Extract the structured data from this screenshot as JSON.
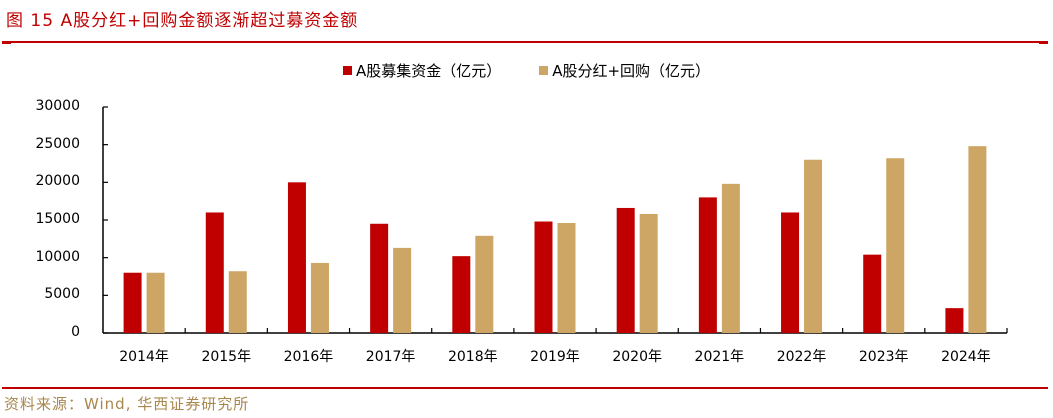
{
  "header": {
    "title": "图 15 A股分红+回购金额逐渐超过募资金额"
  },
  "footer": {
    "source": "资料来源：Wind, 华西证券研究所"
  },
  "colors": {
    "accent": "#c00000",
    "series_1": "#c00000",
    "series_2": "#cda564",
    "source_text": "#a8874e"
  },
  "legend": [
    {
      "label": "A股募集资金（亿元）",
      "color": "#c00000"
    },
    {
      "label": "A股分红+回购（亿元）",
      "color": "#cda564"
    }
  ],
  "y_axis": {
    "ticks": [
      "0",
      "5000",
      "10000",
      "15000",
      "20000",
      "25000",
      "30000"
    ]
  },
  "chart_data": {
    "type": "bar",
    "title": "图 15 A股分红+回购金额逐渐超过募资金额",
    "xlabel": "",
    "ylabel": "",
    "ylim": [
      0,
      30000
    ],
    "yticks": [
      0,
      5000,
      10000,
      15000,
      20000,
      25000,
      30000
    ],
    "grid": false,
    "legend_position": "top",
    "categories": [
      "2014年",
      "2015年",
      "2016年",
      "2017年",
      "2018年",
      "2019年",
      "2020年",
      "2021年",
      "2022年",
      "2023年",
      "2024年"
    ],
    "series": [
      {
        "name": "A股募集资金（亿元）",
        "color": "#c00000",
        "values": [
          8000,
          16000,
          20000,
          14500,
          10200,
          14800,
          16600,
          18000,
          16000,
          10400,
          3300
        ]
      },
      {
        "name": "A股分红+回购（亿元）",
        "color": "#cda564",
        "values": [
          8000,
          8200,
          9300,
          11300,
          12900,
          14600,
          15800,
          19800,
          23000,
          23200,
          24800
        ]
      }
    ],
    "source": "资料来源：Wind, 华西证券研究所"
  }
}
